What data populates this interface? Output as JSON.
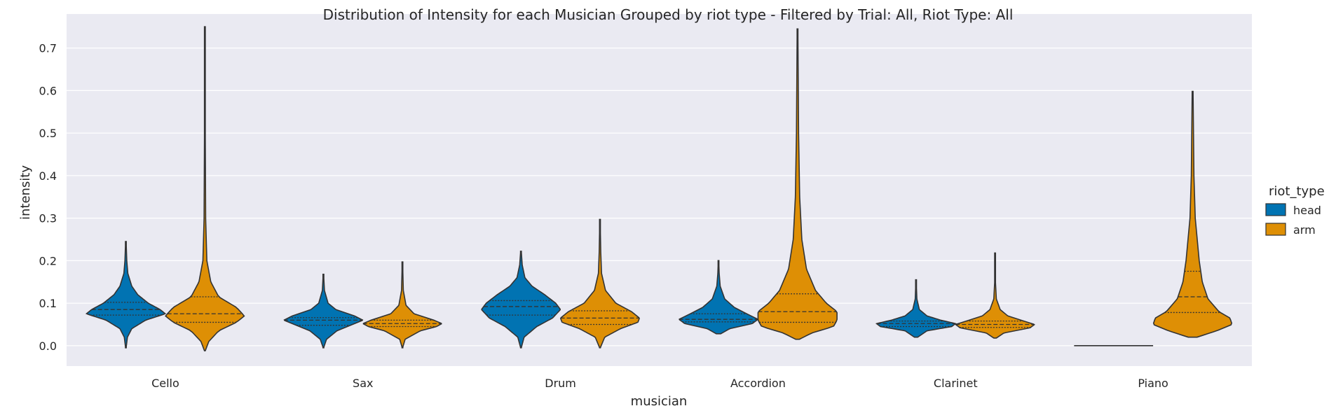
{
  "chart_data": {
    "type": "violin",
    "title": "Distribution of Intensity for each Musician Grouped by riot type - Filtered by Trial: All, Riot Type: All",
    "xlabel": "musician",
    "ylabel": "intensity",
    "categories": [
      "Cello",
      "Sax",
      "Drum",
      "Accordion",
      "Clarinet",
      "Piano"
    ],
    "ylim": [
      -0.048,
      0.78
    ],
    "yticks": [
      "0.0",
      "0.1",
      "0.2",
      "0.3",
      "0.4",
      "0.5",
      "0.6",
      "0.7"
    ],
    "grid": true,
    "background": "#eaeaf2",
    "legend": {
      "title": "riot_type",
      "position": "right"
    },
    "series": [
      {
        "name": "head",
        "color": "#0173b2",
        "violins": [
          {
            "min": -0.005,
            "max": 0.245,
            "q1": 0.072,
            "median": 0.085,
            "q3": 0.102,
            "profile": [
              [
                -0.005,
                0.002
              ],
              [
                0.02,
                0.012
              ],
              [
                0.04,
                0.045
              ],
              [
                0.06,
                0.15
              ],
              [
                0.075,
                0.3
              ],
              [
                0.085,
                0.26
              ],
              [
                0.1,
                0.17
              ],
              [
                0.12,
                0.09
              ],
              [
                0.14,
                0.045
              ],
              [
                0.17,
                0.015
              ],
              [
                0.2,
                0.007
              ],
              [
                0.245,
                0.002
              ]
            ]
          },
          {
            "min": -0.005,
            "max": 0.168,
            "q1": 0.048,
            "median": 0.06,
            "q3": 0.066,
            "profile": [
              [
                -0.005,
                0.002
              ],
              [
                0.015,
                0.03
              ],
              [
                0.035,
                0.13
              ],
              [
                0.05,
                0.28
              ],
              [
                0.06,
                0.38
              ],
              [
                0.07,
                0.3
              ],
              [
                0.085,
                0.12
              ],
              [
                0.1,
                0.045
              ],
              [
                0.13,
                0.01
              ],
              [
                0.168,
                0.002
              ]
            ]
          },
          {
            "min": -0.005,
            "max": 0.222,
            "q1": 0.072,
            "median": 0.092,
            "q3": 0.106,
            "profile": [
              [
                -0.005,
                0.002
              ],
              [
                0.02,
                0.02
              ],
              [
                0.045,
                0.1
              ],
              [
                0.065,
                0.2
              ],
              [
                0.085,
                0.25
              ],
              [
                0.1,
                0.22
              ],
              [
                0.12,
                0.15
              ],
              [
                0.14,
                0.07
              ],
              [
                0.16,
                0.025
              ],
              [
                0.19,
                0.008
              ],
              [
                0.222,
                0.002
              ]
            ]
          },
          {
            "min": 0.028,
            "max": 0.2,
            "q1": 0.056,
            "median": 0.062,
            "q3": 0.075,
            "profile": [
              [
                0.028,
                0.02
              ],
              [
                0.04,
                0.1
              ],
              [
                0.052,
                0.3
              ],
              [
                0.062,
                0.35
              ],
              [
                0.075,
                0.25
              ],
              [
                0.09,
                0.14
              ],
              [
                0.11,
                0.055
              ],
              [
                0.14,
                0.015
              ],
              [
                0.17,
                0.006
              ],
              [
                0.2,
                0.002
              ]
            ]
          },
          {
            "min": 0.02,
            "max": 0.155,
            "q1": 0.045,
            "median": 0.052,
            "q3": 0.058,
            "profile": [
              [
                0.02,
                0.03
              ],
              [
                0.035,
                0.2
              ],
              [
                0.045,
                0.65
              ],
              [
                0.052,
                0.72
              ],
              [
                0.06,
                0.45
              ],
              [
                0.07,
                0.2
              ],
              [
                0.085,
                0.06
              ],
              [
                0.11,
                0.015
              ],
              [
                0.155,
                0.002
              ]
            ]
          },
          {
            "min": 0.0,
            "max": 0.0,
            "q1": 0.0,
            "median": 0.0,
            "q3": 0.0,
            "profile": []
          }
        ]
      },
      {
        "name": "arm",
        "color": "#de8f05",
        "violins": [
          {
            "min": -0.012,
            "max": 0.75,
            "q1": 0.055,
            "median": 0.075,
            "q3": 0.115,
            "profile": [
              [
                -0.012,
                0.002
              ],
              [
                0.01,
                0.02
              ],
              [
                0.035,
                0.07
              ],
              [
                0.055,
                0.16
              ],
              [
                0.07,
                0.2
              ],
              [
                0.09,
                0.16
              ],
              [
                0.115,
                0.07
              ],
              [
                0.15,
                0.03
              ],
              [
                0.2,
                0.01
              ],
              [
                0.3,
                0.004
              ],
              [
                0.5,
                0.002
              ],
              [
                0.75,
                0.001
              ]
            ]
          },
          {
            "min": -0.005,
            "max": 0.197,
            "q1": 0.045,
            "median": 0.052,
            "q3": 0.06,
            "profile": [
              [
                -0.005,
                0.002
              ],
              [
                0.015,
                0.03
              ],
              [
                0.035,
                0.2
              ],
              [
                0.045,
                0.38
              ],
              [
                0.052,
                0.44
              ],
              [
                0.06,
                0.35
              ],
              [
                0.075,
                0.13
              ],
              [
                0.095,
                0.04
              ],
              [
                0.13,
                0.01
              ],
              [
                0.197,
                0.002
              ]
            ]
          },
          {
            "min": -0.005,
            "max": 0.297,
            "q1": 0.05,
            "median": 0.065,
            "q3": 0.082,
            "profile": [
              [
                -0.005,
                0.002
              ],
              [
                0.02,
                0.03
              ],
              [
                0.04,
                0.13
              ],
              [
                0.055,
                0.24
              ],
              [
                0.065,
                0.25
              ],
              [
                0.08,
                0.2
              ],
              [
                0.1,
                0.1
              ],
              [
                0.13,
                0.035
              ],
              [
                0.17,
                0.01
              ],
              [
                0.22,
                0.005
              ],
              [
                0.297,
                0.001
              ]
            ]
          },
          {
            "min": 0.015,
            "max": 0.745,
            "q1": 0.055,
            "median": 0.08,
            "q3": 0.122,
            "profile": [
              [
                0.015,
                0.005
              ],
              [
                0.03,
                0.04
              ],
              [
                0.045,
                0.1
              ],
              [
                0.06,
                0.11
              ],
              [
                0.08,
                0.11
              ],
              [
                0.1,
                0.08
              ],
              [
                0.13,
                0.05
              ],
              [
                0.18,
                0.025
              ],
              [
                0.25,
                0.012
              ],
              [
                0.35,
                0.006
              ],
              [
                0.5,
                0.003
              ],
              [
                0.745,
                0.001
              ]
            ]
          },
          {
            "min": 0.018,
            "max": 0.218,
            "q1": 0.043,
            "median": 0.05,
            "q3": 0.058,
            "profile": [
              [
                0.018,
                0.02
              ],
              [
                0.03,
                0.14
              ],
              [
                0.042,
                0.55
              ],
              [
                0.05,
                0.62
              ],
              [
                0.058,
                0.45
              ],
              [
                0.07,
                0.2
              ],
              [
                0.085,
                0.08
              ],
              [
                0.11,
                0.02
              ],
              [
                0.15,
                0.006
              ],
              [
                0.218,
                0.001
              ]
            ]
          },
          {
            "min": 0.02,
            "max": 0.598,
            "q1": 0.078,
            "median": 0.115,
            "q3": 0.175,
            "profile": [
              [
                0.02,
                0.01
              ],
              [
                0.035,
                0.055
              ],
              [
                0.05,
                0.09
              ],
              [
                0.065,
                0.085
              ],
              [
                0.08,
                0.06
              ],
              [
                0.11,
                0.035
              ],
              [
                0.15,
                0.022
              ],
              [
                0.2,
                0.015
              ],
              [
                0.3,
                0.006
              ],
              [
                0.4,
                0.003
              ],
              [
                0.598,
                0.001
              ]
            ]
          }
        ]
      }
    ]
  }
}
